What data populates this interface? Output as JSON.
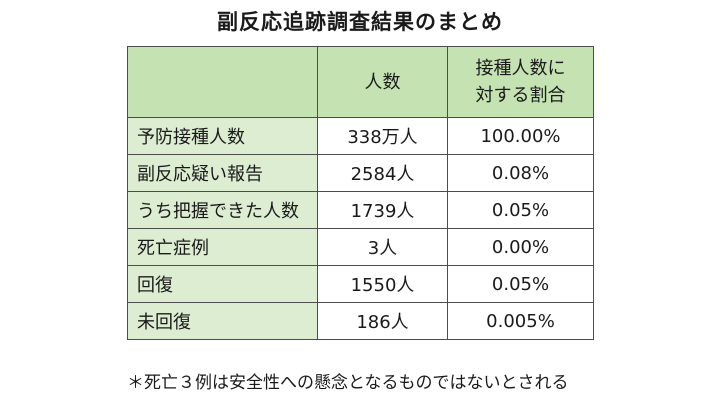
{
  "title": "副反応追跡調査結果のまとめ",
  "table": {
    "header": {
      "label": "",
      "count": "人数",
      "ratio_line1": "接種人数に",
      "ratio_line2": "対する割合"
    },
    "rows": [
      {
        "label": "予防接種人数",
        "count": "338万人",
        "ratio": "100.00%"
      },
      {
        "label": "副反応疑い報告",
        "count": "2584人",
        "ratio": "0.08%"
      },
      {
        "label": "うち把握できた人数",
        "count": "1739人",
        "ratio": "0.05%"
      },
      {
        "label": "死亡症例",
        "count": "3人",
        "ratio": "0.00%"
      },
      {
        "label": "回復",
        "count": "1550人",
        "ratio": "0.05%"
      },
      {
        "label": "未回復",
        "count": "186人",
        "ratio": "0.005%"
      }
    ]
  },
  "footnote": "＊死亡３例は安全性への懸念となるものではないとされる",
  "colors": {
    "header_bg": "#c5e2b2",
    "label_bg": "#dcedd2",
    "border": "#4d4d4d"
  }
}
